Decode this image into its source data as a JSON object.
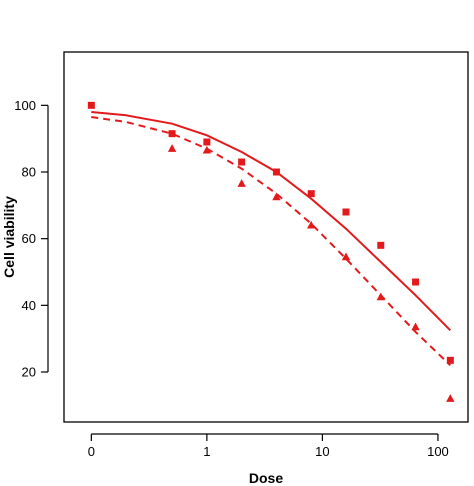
{
  "chart_data": {
    "type": "scatter",
    "title": "",
    "xlabel": "Dose",
    "ylabel": "Cell viability",
    "x_scale": "log",
    "x_ticks": [
      {
        "value": 0.1,
        "label": "0"
      },
      {
        "value": 1,
        "label": "1"
      },
      {
        "value": 10,
        "label": "10"
      },
      {
        "value": 100,
        "label": "100"
      }
    ],
    "y_ticks": [
      20,
      40,
      60,
      80,
      100
    ],
    "xlim": [
      0.058,
      182
    ],
    "ylim": [
      5,
      116
    ],
    "grid": false,
    "legend": "none",
    "color": "#e31a1c",
    "series": [
      {
        "marker": "square",
        "points": [
          {
            "x": 0.1,
            "y": 100
          },
          {
            "x": 0.5,
            "y": 91.5
          },
          {
            "x": 1,
            "y": 89
          },
          {
            "x": 2,
            "y": 83
          },
          {
            "x": 4,
            "y": 80
          },
          {
            "x": 8,
            "y": 73.5
          },
          {
            "x": 16,
            "y": 68
          },
          {
            "x": 32,
            "y": 58
          },
          {
            "x": 64,
            "y": 47
          },
          {
            "x": 128,
            "y": 23.5
          }
        ],
        "fit": {
          "line": "solid",
          "x": [
            0.1,
            0.2,
            0.5,
            1,
            2,
            4,
            8,
            16,
            32,
            64,
            128
          ],
          "y": [
            98,
            97,
            94.5,
            91,
            86,
            80,
            72,
            63,
            53,
            43,
            32.5
          ]
        }
      },
      {
        "marker": "triangle",
        "points": [
          {
            "x": 0.5,
            "y": 87
          },
          {
            "x": 1,
            "y": 86.5
          },
          {
            "x": 2,
            "y": 76.5
          },
          {
            "x": 4,
            "y": 72.5
          },
          {
            "x": 8,
            "y": 64
          },
          {
            "x": 16,
            "y": 54.5
          },
          {
            "x": 32,
            "y": 42.5
          },
          {
            "x": 64,
            "y": 33.5
          },
          {
            "x": 128,
            "y": 12
          }
        ],
        "fit": {
          "line": "dashed",
          "x": [
            0.1,
            0.2,
            0.5,
            1,
            2,
            4,
            8,
            16,
            32,
            64,
            128
          ],
          "y": [
            96.5,
            95,
            91.5,
            87,
            81,
            73.5,
            64.5,
            54,
            43,
            32,
            22
          ]
        }
      }
    ]
  }
}
